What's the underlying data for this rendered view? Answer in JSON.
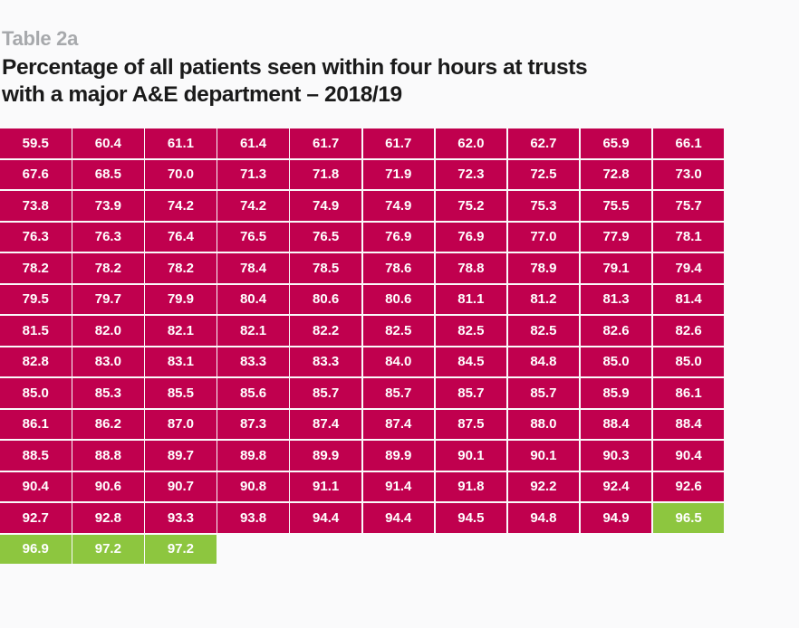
{
  "header": {
    "label": "Table 2a",
    "title_line1": "Percentage of all patients seen within four hours at trusts",
    "title_line2": "with a major A&E department – 2018/19"
  },
  "colors": {
    "below_target": "#c0004e",
    "at_or_above_target": "#8dc63f",
    "background": "#fafafb"
  },
  "chart_data": {
    "type": "table",
    "title": "Percentage of all patients seen within four hours at trusts with a major A&E department – 2018/19",
    "columns": 10,
    "highlighted_from": 96.5,
    "rows": [
      [
        "59.5",
        "60.4",
        "61.1",
        "61.4",
        "61.7",
        "61.7",
        "62.0",
        "62.7",
        "65.9",
        "66.1"
      ],
      [
        "67.6",
        "68.5",
        "70.0",
        "71.3",
        "71.8",
        "71.9",
        "72.3",
        "72.5",
        "72.8",
        "73.0"
      ],
      [
        "73.8",
        "73.9",
        "74.2",
        "74.2",
        "74.9",
        "74.9",
        "75.2",
        "75.3",
        "75.5",
        "75.7"
      ],
      [
        "76.3",
        "76.3",
        "76.4",
        "76.5",
        "76.5",
        "76.9",
        "76.9",
        "77.0",
        "77.9",
        "78.1"
      ],
      [
        "78.2",
        "78.2",
        "78.2",
        "78.4",
        "78.5",
        "78.6",
        "78.8",
        "78.9",
        "79.1",
        "79.4"
      ],
      [
        "79.5",
        "79.7",
        "79.9",
        "80.4",
        "80.6",
        "80.6",
        "81.1",
        "81.2",
        "81.3",
        "81.4"
      ],
      [
        "81.5",
        "82.0",
        "82.1",
        "82.1",
        "82.2",
        "82.5",
        "82.5",
        "82.5",
        "82.6",
        "82.6"
      ],
      [
        "82.8",
        "83.0",
        "83.1",
        "83.3",
        "83.3",
        "84.0",
        "84.5",
        "84.8",
        "85.0",
        "85.0"
      ],
      [
        "85.0",
        "85.3",
        "85.5",
        "85.6",
        "85.7",
        "85.7",
        "85.7",
        "85.7",
        "85.9",
        "86.1"
      ],
      [
        "86.1",
        "86.2",
        "87.0",
        "87.3",
        "87.4",
        "87.4",
        "87.5",
        "88.0",
        "88.4",
        "88.4"
      ],
      [
        "88.5",
        "88.8",
        "89.7",
        "89.8",
        "89.9",
        "89.9",
        "90.1",
        "90.1",
        "90.3",
        "90.4"
      ],
      [
        "90.4",
        "90.6",
        "90.7",
        "90.8",
        "91.1",
        "91.4",
        "91.8",
        "92.2",
        "92.4",
        "92.6"
      ],
      [
        "92.7",
        "92.8",
        "93.3",
        "93.8",
        "94.4",
        "94.4",
        "94.5",
        "94.8",
        "94.9",
        "96.5"
      ],
      [
        "96.9",
        "97.2",
        "97.2"
      ]
    ]
  }
}
